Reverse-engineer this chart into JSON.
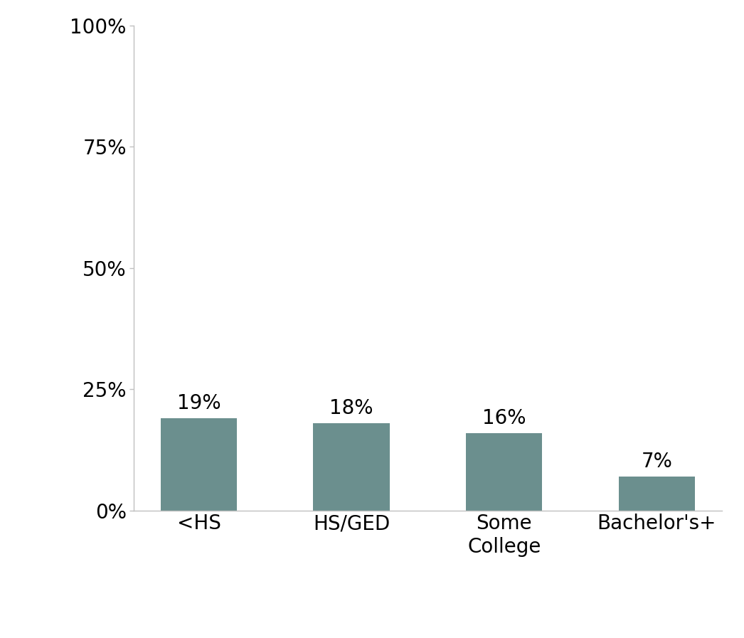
{
  "categories": [
    "<HS",
    "HS/GED",
    "Some\nCollege",
    "Bachelor's+"
  ],
  "values": [
    19,
    18,
    16,
    7
  ],
  "bar_color": "#6b8f8e",
  "ylim": [
    0,
    100
  ],
  "yticks": [
    0,
    25,
    50,
    75,
    100
  ],
  "ytick_labels": [
    "0%",
    "25%",
    "50%",
    "75%",
    "100%"
  ],
  "tick_fontsize": 20,
  "value_fontsize": 20,
  "background_color": "#ffffff",
  "bar_width": 0.5,
  "spine_color": "#c0c0c0"
}
